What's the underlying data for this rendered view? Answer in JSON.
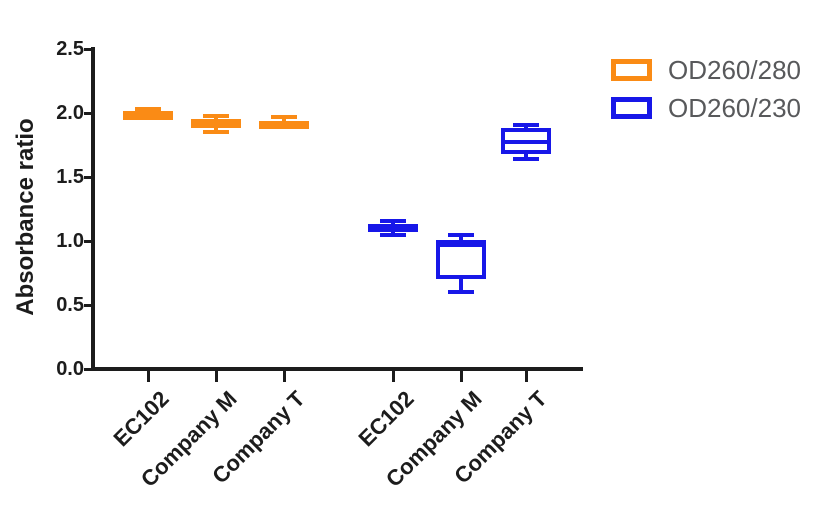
{
  "colors": {
    "od260_280": "#FA8B15",
    "od260_230": "#1717E8",
    "axis": "#1C1C1C",
    "legend_text": "#58595B",
    "background": "#FFFFFF"
  },
  "chart_data": {
    "type": "boxplot",
    "title": "",
    "ylabel": "Absorbance ratio",
    "xlabel": "",
    "ylim": [
      0,
      2.5
    ],
    "yticks": [
      0,
      0.5,
      1,
      1.5,
      2,
      2.5
    ],
    "ytick_labels": [
      "0.0",
      "0.5",
      "1.0",
      "1.5",
      "2.0",
      "2.5"
    ],
    "categories": [
      "EC102",
      "Company M",
      "Company T",
      "EC102",
      "Company M",
      "Company T"
    ],
    "grid": false,
    "legend_position": "top-right",
    "series": [
      {
        "name": "OD260/280",
        "color": "#FA8B15",
        "boxes": [
          {
            "category": "EC102",
            "slot": 0,
            "min": 1.97,
            "q1": 1.99,
            "median": 2.0,
            "q3": 2.01,
            "max": 2.03
          },
          {
            "category": "Company M",
            "slot": 1,
            "min": 1.85,
            "q1": 1.88,
            "median": 1.92,
            "q3": 1.95,
            "max": 1.98
          },
          {
            "category": "Company T",
            "slot": 2,
            "min": 1.88,
            "q1": 1.88,
            "median": 1.91,
            "q3": 1.94,
            "max": 1.97
          }
        ]
      },
      {
        "name": "OD260/230",
        "color": "#1717E8",
        "boxes": [
          {
            "category": "EC102",
            "slot": 3,
            "min": 1.05,
            "q1": 1.07,
            "median": 1.1,
            "q3": 1.13,
            "max": 1.16
          },
          {
            "category": "Company M",
            "slot": 4,
            "min": 0.6,
            "q1": 0.7,
            "median": 0.97,
            "q3": 1.01,
            "max": 1.05
          },
          {
            "category": "Company T",
            "slot": 5,
            "min": 1.64,
            "q1": 1.68,
            "median": 1.77,
            "q3": 1.88,
            "max": 1.91
          }
        ]
      }
    ]
  }
}
